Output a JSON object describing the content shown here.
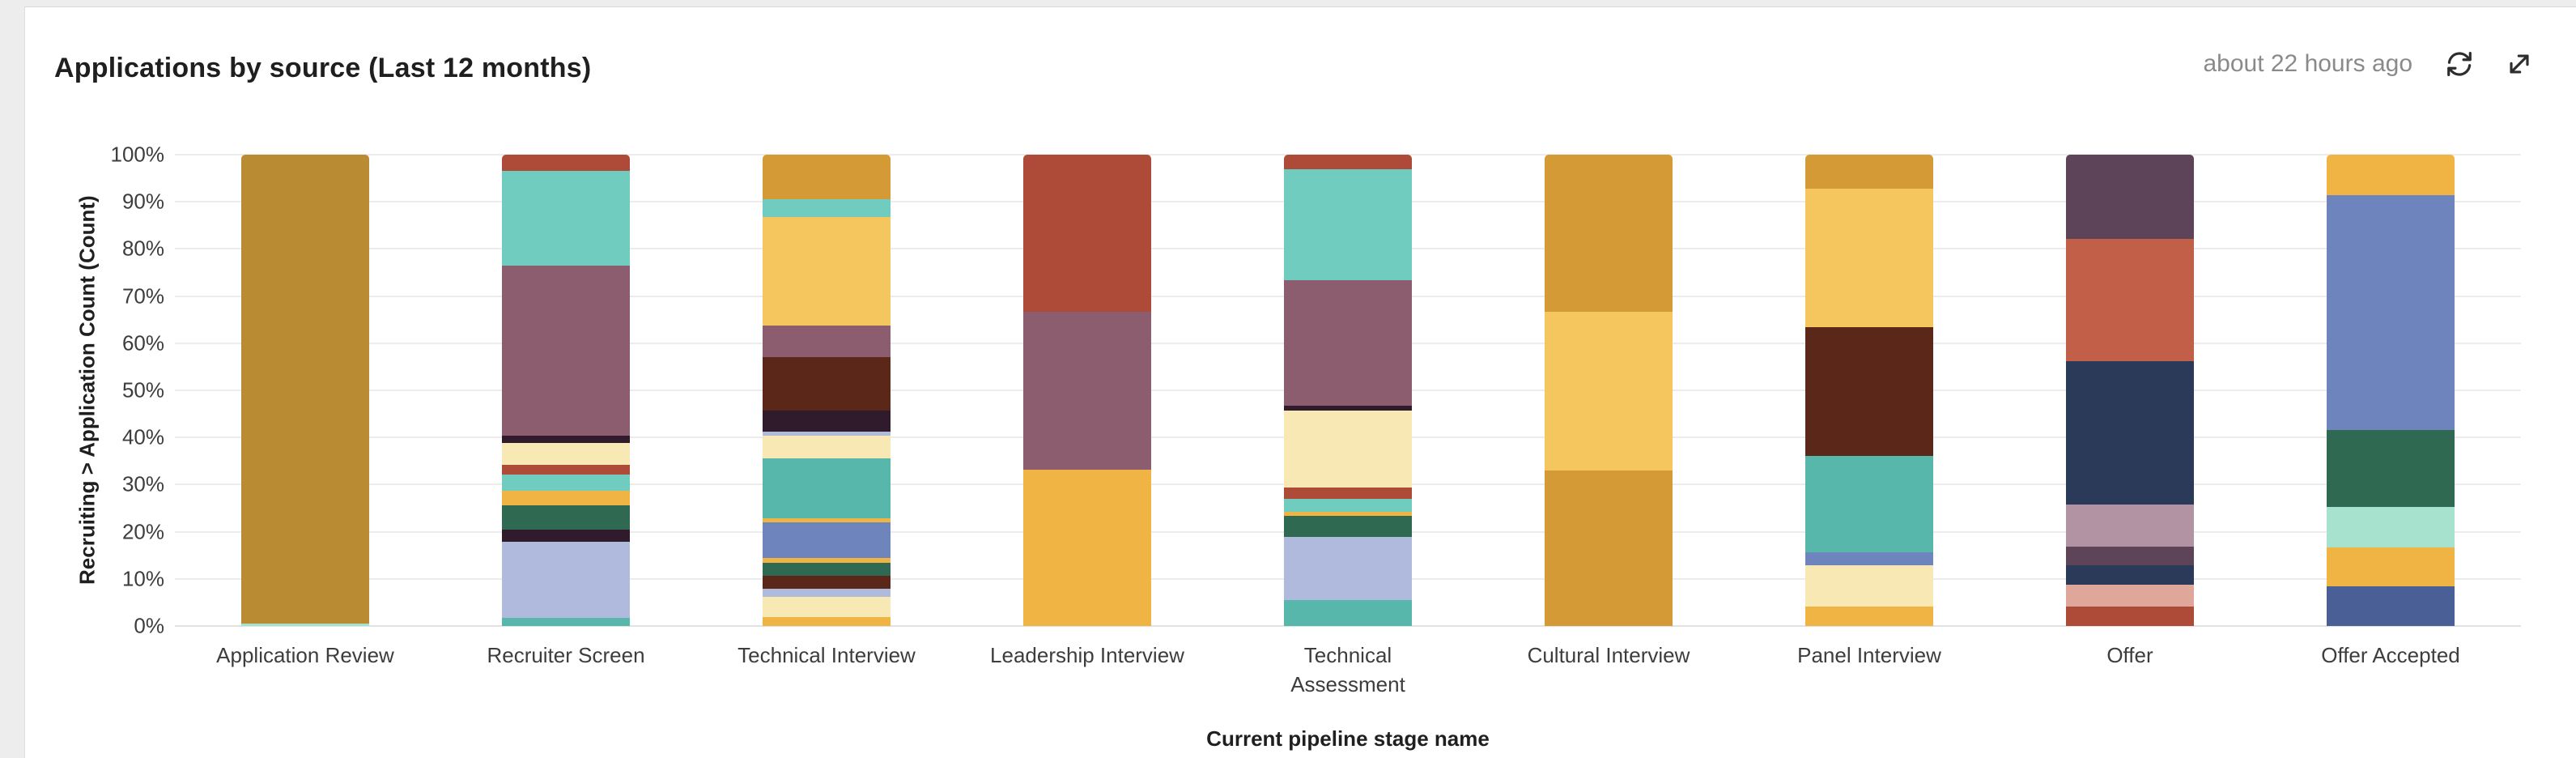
{
  "header": {
    "title": "Applications by source (Last 12 months)",
    "last_updated": "about 22 hours ago",
    "icons": [
      {
        "name": "refresh-icon"
      },
      {
        "name": "expand-icon"
      }
    ]
  },
  "colors": {
    "page_bg": "#EDEDED",
    "card_bg": "#FFFFFF",
    "gridline": "#ECECEC",
    "axis_text": "#3D3D3D",
    "title_text": "#1F1F1F",
    "muted_text": "#8A8A8A",
    "palette": {
      "goldenrod_dark": "#B98B33",
      "goldenrod": "#D49A36",
      "gold_light": "#F5C55E",
      "amber": "#F0B445",
      "pale_yellow": "#F8E9B4",
      "brick_red": "#AD4A38",
      "orange_red": "#C25F49",
      "salmon": "#DFA79A",
      "maroon": "#5A2718",
      "dark_plum": "#301B2D",
      "plum": "#5E4458",
      "mauve": "#8B5D6E",
      "mauve_pink": "#B193A3",
      "lavender": "#AFBADD",
      "periwinkle": "#6E84BC",
      "dark_blue": "#4A5F96",
      "navy": "#2B3A59",
      "teal_light": "#6FCCBF",
      "teal": "#57B7AB",
      "mint": "#A7E2CE",
      "dark_green": "#2F6951"
    }
  },
  "chart_data": {
    "type": "bar",
    "stacked": true,
    "percent_stacked": true,
    "title": "Applications by source (Last 12 months)",
    "xlabel": "Current pipeline stage name",
    "ylabel": "Recruiting > Application Count (Count)",
    "ylim": [
      0,
      100
    ],
    "ytick_step_percent": 10,
    "ytick_labels": [
      "100%",
      "90%",
      "80%",
      "70%",
      "60%",
      "50%",
      "40%",
      "30%",
      "20%",
      "10%",
      "0%"
    ],
    "grid": true,
    "legend": "none",
    "segment_order": "top-to-bottom",
    "segment_unit": "percent_of_bar",
    "categories": [
      "Application Review",
      "Recruiter Screen",
      "Technical Interview",
      "Leadership Interview",
      "Technical Assessment",
      "Cultural Interview",
      "Panel Interview",
      "Offer",
      "Offer Accepted"
    ],
    "bars": [
      {
        "category": "Application Review",
        "segments": [
          {
            "color": "#B98B33",
            "value": 99.5
          },
          {
            "color": "#A7E2CE",
            "value": 0.5
          }
        ]
      },
      {
        "category": "Recruiter Screen",
        "segments": [
          {
            "color": "#AD4A38",
            "value": 3.4
          },
          {
            "color": "#6FCCBF",
            "value": 20.1
          },
          {
            "color": "#8B5D6E",
            "value": 36.2
          },
          {
            "color": "#301B2D",
            "value": 1.4
          },
          {
            "color": "#F8E9B4",
            "value": 4.8
          },
          {
            "color": "#AD4A38",
            "value": 2.0
          },
          {
            "color": "#6FCCBF",
            "value": 3.4
          },
          {
            "color": "#F0B445",
            "value": 3.1
          },
          {
            "color": "#2F6951",
            "value": 5.1
          },
          {
            "color": "#301B2D",
            "value": 2.7
          },
          {
            "color": "#AFBADD",
            "value": 16.1
          },
          {
            "color": "#57B7AB",
            "value": 1.7
          }
        ]
      },
      {
        "category": "Technical Interview",
        "segments": [
          {
            "color": "#D49A36",
            "value": 9.5
          },
          {
            "color": "#6FCCBF",
            "value": 3.8
          },
          {
            "color": "#F5C55E",
            "value": 22.9
          },
          {
            "color": "#8B5D6E",
            "value": 6.8
          },
          {
            "color": "#5A2718",
            "value": 11.3
          },
          {
            "color": "#301B2D",
            "value": 4.4
          },
          {
            "color": "#AFBADD",
            "value": 1.0
          },
          {
            "color": "#F8E9B4",
            "value": 4.8
          },
          {
            "color": "#57B7AB",
            "value": 12.6
          },
          {
            "color": "#F0B445",
            "value": 1.0
          },
          {
            "color": "#6E84BC",
            "value": 7.5
          },
          {
            "color": "#F0B445",
            "value": 1.0
          },
          {
            "color": "#2F6951",
            "value": 2.7
          },
          {
            "color": "#5A2718",
            "value": 2.8
          },
          {
            "color": "#AFBADD",
            "value": 1.7
          },
          {
            "color": "#F8E9B4",
            "value": 4.4
          },
          {
            "color": "#F0B445",
            "value": 1.8
          }
        ]
      },
      {
        "category": "Leadership Interview",
        "segments": [
          {
            "color": "#AD4A38",
            "value": 33.4
          },
          {
            "color": "#8B5D6E",
            "value": 33.4
          },
          {
            "color": "#F0B445",
            "value": 33.2
          }
        ]
      },
      {
        "category": "Technical Assessment",
        "segments": [
          {
            "color": "#AD4A38",
            "value": 3.1
          },
          {
            "color": "#6FCCBF",
            "value": 23.5
          },
          {
            "color": "#8B5D6E",
            "value": 26.7
          },
          {
            "color": "#301B2D",
            "value": 1.0
          },
          {
            "color": "#F8E9B4",
            "value": 16.3
          },
          {
            "color": "#AD4A38",
            "value": 2.4
          },
          {
            "color": "#6FCCBF",
            "value": 2.7
          },
          {
            "color": "#F0B445",
            "value": 1.0
          },
          {
            "color": "#2F6951",
            "value": 4.4
          },
          {
            "color": "#AFBADD",
            "value": 13.4
          },
          {
            "color": "#57B7AB",
            "value": 5.5
          }
        ]
      },
      {
        "category": "Cultural Interview",
        "segments": [
          {
            "color": "#D49A36",
            "value": 33.3
          },
          {
            "color": "#F5C55E",
            "value": 33.7
          },
          {
            "color": "#D49A36",
            "value": 33.0
          }
        ]
      },
      {
        "category": "Panel Interview",
        "segments": [
          {
            "color": "#D49A36",
            "value": 7.2
          },
          {
            "color": "#F5C55E",
            "value": 29.4
          },
          {
            "color": "#5A2718",
            "value": 27.3
          },
          {
            "color": "#57B7AB",
            "value": 20.5
          },
          {
            "color": "#6E84BC",
            "value": 2.7
          },
          {
            "color": "#F8E9B4",
            "value": 8.8
          },
          {
            "color": "#F0B445",
            "value": 4.1
          }
        ]
      },
      {
        "category": "Offer",
        "segments": [
          {
            "color": "#5E4458",
            "value": 17.8
          },
          {
            "color": "#C25F49",
            "value": 26.0
          },
          {
            "color": "#2B3A59",
            "value": 30.4
          },
          {
            "color": "#B193A3",
            "value": 8.9
          },
          {
            "color": "#5E4458",
            "value": 4.1
          },
          {
            "color": "#2B3A59",
            "value": 4.1
          },
          {
            "color": "#DFA79A",
            "value": 4.6
          },
          {
            "color": "#AD4A38",
            "value": 4.1
          }
        ]
      },
      {
        "category": "Offer Accepted",
        "segments": [
          {
            "color": "#F0B445",
            "value": 8.6
          },
          {
            "color": "#6E84BC",
            "value": 49.8
          },
          {
            "color": "#2F6951",
            "value": 16.4
          },
          {
            "color": "#A7E2CE",
            "value": 8.6
          },
          {
            "color": "#F0B445",
            "value": 8.2
          },
          {
            "color": "#4A5F96",
            "value": 8.4
          }
        ]
      }
    ]
  }
}
